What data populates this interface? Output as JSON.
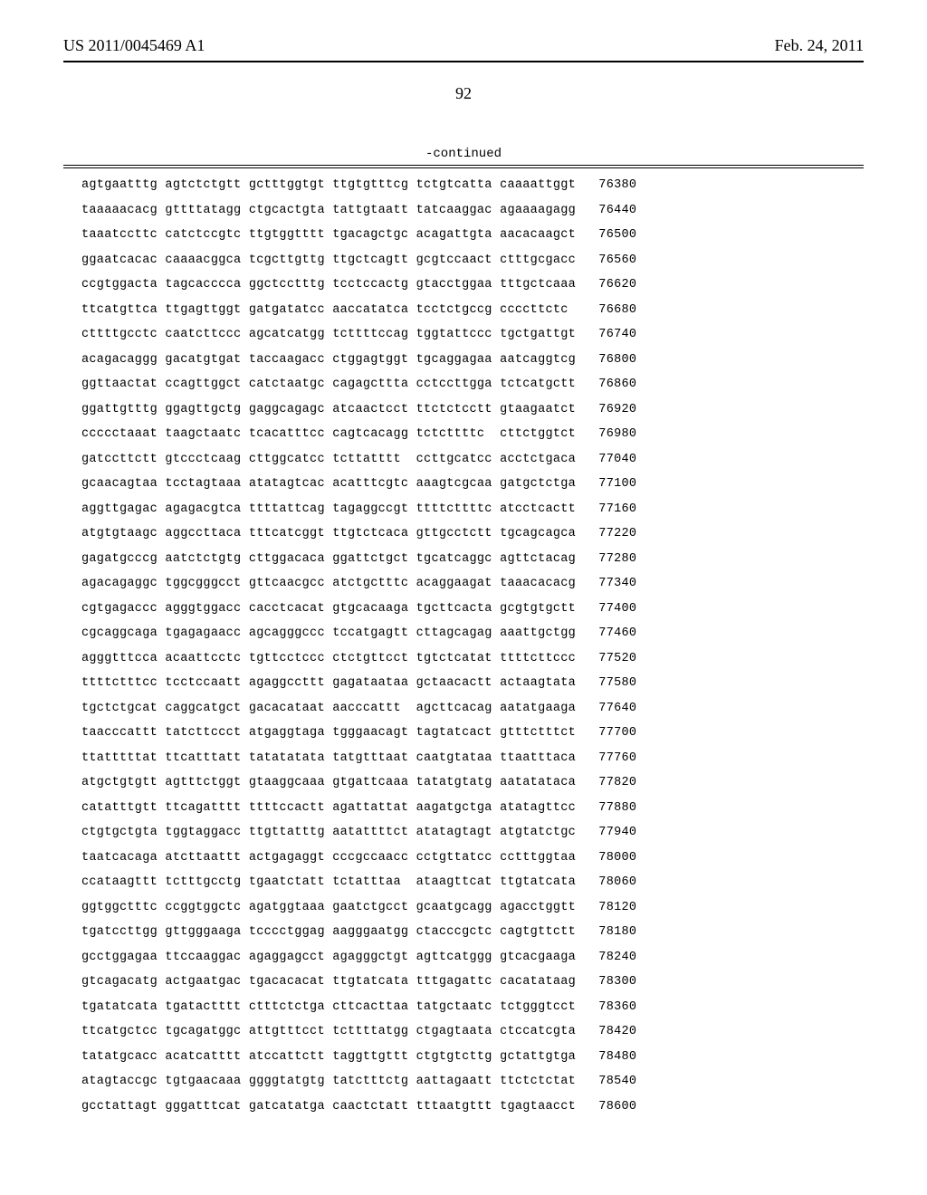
{
  "header": {
    "left": "US 2011/0045469 A1",
    "right": "Feb. 24, 2011"
  },
  "page_number": "92",
  "continued_label": "-continued",
  "sequence_rows": [
    {
      "g1": "agtgaatttg",
      "g2": "agtctctgtt",
      "g3": "gctttggtgt",
      "g4": "ttgtgtttcg",
      "g5": "tctgtcatta",
      "g6": "caaaattggt",
      "pos": "76380"
    },
    {
      "g1": "taaaaacacg",
      "g2": "gttttatagg",
      "g3": "ctgcactgta",
      "g4": "tattgtaatt",
      "g5": "tatcaaggac",
      "g6": "agaaaagagg",
      "pos": "76440"
    },
    {
      "g1": "taaatccttc",
      "g2": "catctccgtc",
      "g3": "ttgtggtttt",
      "g4": "tgacagctgc",
      "g5": "acagattgta",
      "g6": "aacacaagct",
      "pos": "76500"
    },
    {
      "g1": "ggaatcacac",
      "g2": "caaaacggca",
      "g3": "tcgcttgttg",
      "g4": "ttgctcagtt",
      "g5": "gcgtccaact",
      "g6": "ctttgcgacc",
      "pos": "76560"
    },
    {
      "g1": "ccgtggacta",
      "g2": "tagcacccca",
      "g3": "ggctcctttg",
      "g4": "tcctccactg",
      "g5": "gtacctggaa",
      "g6": "tttgctcaaa",
      "pos": "76620"
    },
    {
      "g1": "ttcatgttca",
      "g2": "ttgagttggt",
      "g3": "gatgatatcc",
      "g4": "aaccatatca",
      "g5": "tcctctgccg",
      "g6": "ccccttctc",
      "pos": "76680"
    },
    {
      "g1": "cttttgcctc",
      "g2": "caatcttccc",
      "g3": "agcatcatgg",
      "g4": "tcttttccag",
      "g5": "tggtattccc",
      "g6": "tgctgattgt",
      "pos": "76740"
    },
    {
      "g1": "acagacaggg",
      "g2": "gacatgtgat",
      "g3": "taccaagacc",
      "g4": "ctggagtggt",
      "g5": "tgcaggagaa",
      "g6": "aatcaggtcg",
      "pos": "76800"
    },
    {
      "g1": "ggttaactat",
      "g2": "ccagttggct",
      "g3": "catctaatgc",
      "g4": "cagagcttta",
      "g5": "cctccttgga",
      "g6": "tctcatgctt",
      "pos": "76860"
    },
    {
      "g1": "ggattgtttg",
      "g2": "ggagttgctg",
      "g3": "gaggcagagc",
      "g4": "atcaactcct",
      "g5": "ttctctcctt",
      "g6": "gtaagaatct",
      "pos": "76920"
    },
    {
      "g1": "ccccctaaat",
      "g2": "taagctaatc",
      "g3": "tcacatttcc",
      "g4": "cagtcacagg",
      "g5": "tctcttttc",
      "g6": "cttctggtct",
      "pos": "76980"
    },
    {
      "g1": "gatccttctt",
      "g2": "gtccctcaag",
      "g3": "cttggcatcc",
      "g4": "tcttatttt",
      "g5": "ccttgcatcc",
      "g6": "acctctgaca",
      "pos": "77040"
    },
    {
      "g1": "gcaacagtaa",
      "g2": "tcctagtaaa",
      "g3": "atatagtcac",
      "g4": "acatttcgtc",
      "g5": "aaagtcgcaa",
      "g6": "gatgctctga",
      "pos": "77100"
    },
    {
      "g1": "aggttgagac",
      "g2": "agagacgtca",
      "g3": "ttttattcag",
      "g4": "tagaggccgt",
      "g5": "ttttcttttc",
      "g6": "atcctcactt",
      "pos": "77160"
    },
    {
      "g1": "atgtgtaagc",
      "g2": "aggccttaca",
      "g3": "tttcatcggt",
      "g4": "ttgtctcaca",
      "g5": "gttgcctctt",
      "g6": "tgcagcagca",
      "pos": "77220"
    },
    {
      "g1": "gagatgcccg",
      "g2": "aatctctgtg",
      "g3": "cttggacaca",
      "g4": "ggattctgct",
      "g5": "tgcatcaggc",
      "g6": "agttctacag",
      "pos": "77280"
    },
    {
      "g1": "agacagaggc",
      "g2": "tggcgggcct",
      "g3": "gttcaacgcc",
      "g4": "atctgctttc",
      "g5": "acaggaagat",
      "g6": "taaacacacg",
      "pos": "77340"
    },
    {
      "g1": "cgtgagaccc",
      "g2": "agggtggacc",
      "g3": "cacctcacat",
      "g4": "gtgcacaaga",
      "g5": "tgcttcacta",
      "g6": "gcgtgtgctt",
      "pos": "77400"
    },
    {
      "g1": "cgcaggcaga",
      "g2": "tgagagaacc",
      "g3": "agcagggccc",
      "g4": "tccatgagtt",
      "g5": "cttagcagag",
      "g6": "aaattgctgg",
      "pos": "77460"
    },
    {
      "g1": "agggtttcca",
      "g2": "acaattcctc",
      "g3": "tgttcctccc",
      "g4": "ctctgttcct",
      "g5": "tgtctcatat",
      "g6": "ttttcttccc",
      "pos": "77520"
    },
    {
      "g1": "ttttctttcc",
      "g2": "tcctccaatt",
      "g3": "agaggccttt",
      "g4": "gagataataa",
      "g5": "gctaacactt",
      "g6": "actaagtata",
      "pos": "77580"
    },
    {
      "g1": "tgctctgcat",
      "g2": "caggcatgct",
      "g3": "gacacataat",
      "g4": "aacccattt",
      "g5": "agcttcacag",
      "g6": "aatatgaaga",
      "pos": "77640"
    },
    {
      "g1": "taacccattt",
      "g2": "tatcttccct",
      "g3": "atgaggtaga",
      "g4": "tgggaacagt",
      "g5": "tagtatcact",
      "g6": "gtttctttct",
      "pos": "77700"
    },
    {
      "g1": "ttatttttat",
      "g2": "ttcatttatt",
      "g3": "tatatatata",
      "g4": "tatgtttaat",
      "g5": "caatgtataa",
      "g6": "ttaatttaca",
      "pos": "77760"
    },
    {
      "g1": "atgctgtgtt",
      "g2": "agtttctggt",
      "g3": "gtaaggcaaa",
      "g4": "gtgattcaaa",
      "g5": "tatatgtatg",
      "g6": "aatatataca",
      "pos": "77820"
    },
    {
      "g1": "catatttgtt",
      "g2": "ttcagatttt",
      "g3": "ttttccactt",
      "g4": "agattattat",
      "g5": "aagatgctga",
      "g6": "atatagttcc",
      "pos": "77880"
    },
    {
      "g1": "ctgtgctgta",
      "g2": "tggtaggacc",
      "g3": "ttgttatttg",
      "g4": "aatattttct",
      "g5": "atatagtagt",
      "g6": "atgtatctgc",
      "pos": "77940"
    },
    {
      "g1": "taatcacaga",
      "g2": "atcttaattt",
      "g3": "actgagaggt",
      "g4": "cccgccaacc",
      "g5": "cctgttatcc",
      "g6": "cctttggtaa",
      "pos": "78000"
    },
    {
      "g1": "ccataagttt",
      "g2": "tctttgcctg",
      "g3": "tgaatctatt",
      "g4": "tctatttaa",
      "g5": "ataagttcat",
      "g6": "ttgtatcata",
      "pos": "78060"
    },
    {
      "g1": "ggtggctttc",
      "g2": "ccggtggctc",
      "g3": "agatggtaaa",
      "g4": "gaatctgcct",
      "g5": "gcaatgcagg",
      "g6": "agacctggtt",
      "pos": "78120"
    },
    {
      "g1": "tgatccttgg",
      "g2": "gttgggaaga",
      "g3": "tcccctggag",
      "g4": "aagggaatgg",
      "g5": "ctacccgctc",
      "g6": "cagtgttctt",
      "pos": "78180"
    },
    {
      "g1": "gcctggagaa",
      "g2": "ttccaaggac",
      "g3": "agaggagcct",
      "g4": "agagggctgt",
      "g5": "agttcatggg",
      "g6": "gtcacgaaga",
      "pos": "78240"
    },
    {
      "g1": "gtcagacatg",
      "g2": "actgaatgac",
      "g3": "tgacacacat",
      "g4": "ttgtatcata",
      "g5": "tttgagattc",
      "g6": "cacatataag",
      "pos": "78300"
    },
    {
      "g1": "tgatatcata",
      "g2": "tgatactttt",
      "g3": "ctttctctga",
      "g4": "cttcacttaa",
      "g5": "tatgctaatc",
      "g6": "tctgggtcct",
      "pos": "78360"
    },
    {
      "g1": "ttcatgctcc",
      "g2": "tgcagatggc",
      "g3": "attgtttcct",
      "g4": "tcttttatgg",
      "g5": "ctgagtaata",
      "g6": "ctccatcgta",
      "pos": "78420"
    },
    {
      "g1": "tatatgcacc",
      "g2": "acatcatttt",
      "g3": "atccattctt",
      "g4": "taggttgttt",
      "g5": "ctgtgtcttg",
      "g6": "gctattgtga",
      "pos": "78480"
    },
    {
      "g1": "atagtaccgc",
      "g2": "tgtgaacaaa",
      "g3": "ggggtatgtg",
      "g4": "tatctttctg",
      "g5": "aattagaatt",
      "g6": "ttctctctat",
      "pos": "78540"
    },
    {
      "g1": "gcctattagt",
      "g2": "gggatttcat",
      "g3": "gatcatatga",
      "g4": "caactctatt",
      "g5": "tttaatgttt",
      "g6": "tgagtaacct",
      "pos": "78600"
    }
  ]
}
